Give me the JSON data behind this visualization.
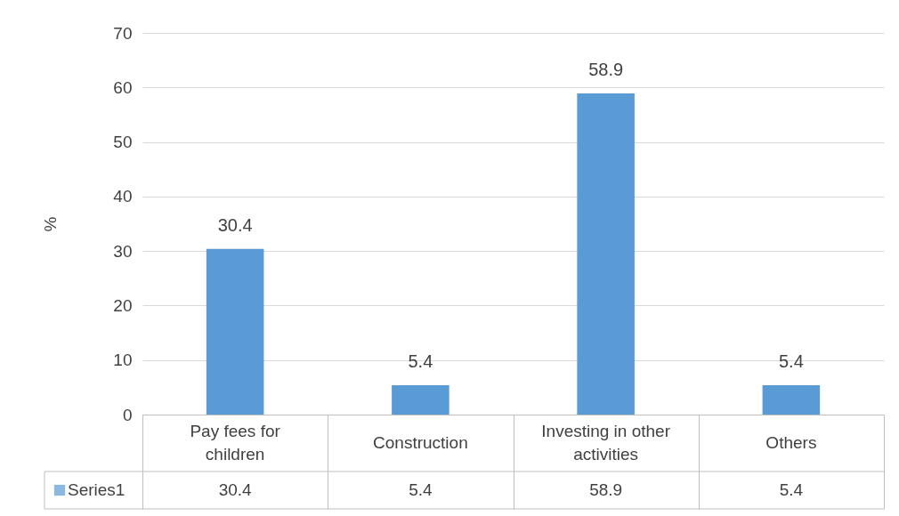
{
  "chart_data": {
    "type": "bar",
    "ylabel": "%",
    "categories": [
      "Pay fees for children",
      "Construction",
      "Investing in other activities",
      "Others"
    ],
    "series": [
      {
        "name": "Series1",
        "color": "#5b9bd5",
        "values": [
          30.4,
          5.4,
          58.9,
          5.4
        ]
      }
    ],
    "annotations": [
      {
        "text": "30.4",
        "x": "Pay fees for children",
        "y": 30.4
      },
      {
        "text": "5.4",
        "x": "Construction",
        "y": 5.4
      },
      {
        "text": "58.9",
        "x": "Investing in other activities",
        "y": 58.9
      },
      {
        "text": "5.4",
        "x": "Others",
        "y": 5.4
      }
    ],
    "ylim": [
      0,
      70
    ],
    "yticks": [
      0,
      10,
      20,
      30,
      40,
      50,
      60,
      70
    ],
    "grid": "y",
    "data_labels": true,
    "legend": "bottom"
  }
}
